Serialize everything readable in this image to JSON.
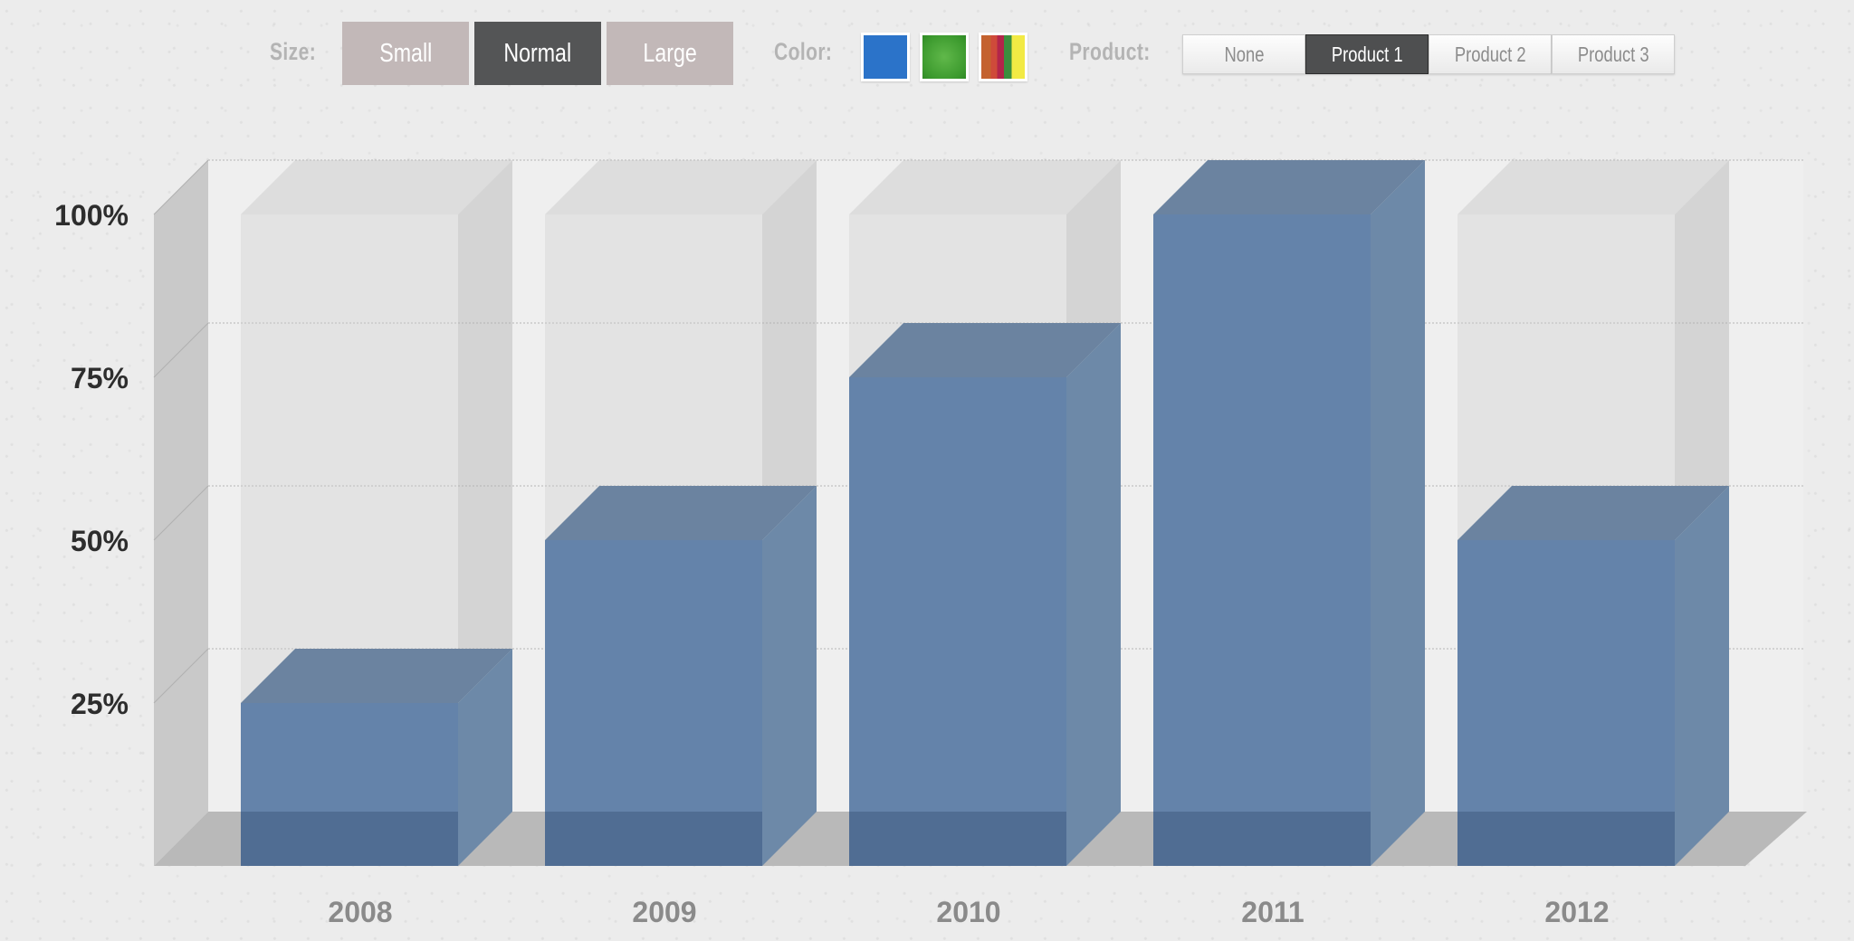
{
  "controls": {
    "size": {
      "label": "Size:",
      "options": [
        "Small",
        "Normal",
        "Large"
      ],
      "selected": "Normal"
    },
    "color": {
      "label": "Color:",
      "swatches": [
        {
          "name": "blue",
          "color": "#2b73c9"
        },
        {
          "name": "green",
          "color": "#48a83a"
        },
        {
          "name": "multi",
          "colors": [
            "#c4622f",
            "#b3254a",
            "#3b8f3e",
            "#f2ea44"
          ]
        }
      ],
      "selected": "blue"
    },
    "product": {
      "label": "Product:",
      "options": [
        "None",
        "Product 1",
        "Product 2",
        "Product 3"
      ],
      "selected": "Product 1"
    }
  },
  "chart_data": {
    "type": "bar",
    "style": "3d",
    "categories": [
      "2008",
      "2009",
      "2010",
      "2011",
      "2012"
    ],
    "series": [
      {
        "values": [
          25,
          50,
          75,
          100,
          50
        ],
        "color": "#5a7ea8"
      }
    ],
    "ylim": [
      0,
      100
    ],
    "yticks": [
      25,
      50,
      75,
      100
    ],
    "ytick_labels": [
      "25%",
      "50%",
      "75%",
      "100%"
    ],
    "grid": true,
    "title": "",
    "xlabel": "",
    "ylabel": ""
  }
}
